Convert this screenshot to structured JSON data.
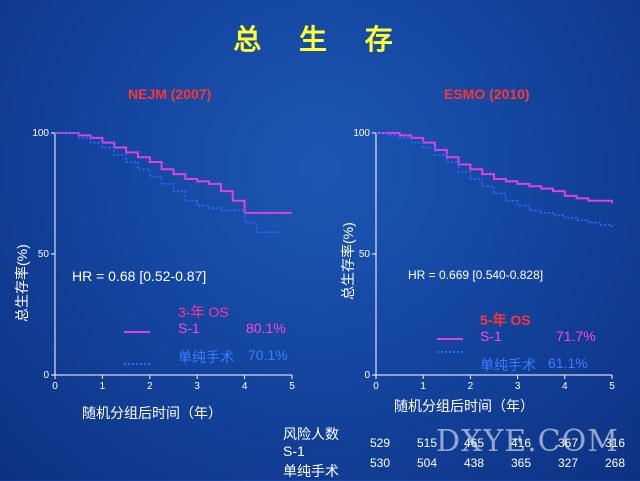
{
  "slide": {
    "title": "总 生 存",
    "watermark": "DXYE.COM",
    "risk_table": {
      "header": "风险人数",
      "rows": [
        {
          "label": "S-1",
          "counts": [
            "529",
            "515",
            "465",
            "416",
            "367",
            "316"
          ]
        },
        {
          "label": "单纯手术",
          "counts": [
            "530",
            "504",
            "438",
            "365",
            "327",
            "268"
          ]
        }
      ]
    }
  },
  "chart_data": [
    {
      "type": "line",
      "title": "NEJM (2007)",
      "xlabel": "随机分组后时间（年）",
      "ylabel": "总生存率(%)",
      "xlim": [
        0,
        5
      ],
      "ylim": [
        0,
        100
      ],
      "xticks": [
        "0",
        "1",
        "2",
        "3",
        "4",
        "5"
      ],
      "yticks": [
        "0",
        "50",
        "100"
      ],
      "annotation": "HR = 0.68 [0.52-0.87]",
      "legend_header": "3-年 OS",
      "series": [
        {
          "name": "S-1",
          "legend_value": "80.1%",
          "color": "#e040e0",
          "dash": "solid",
          "x": [
            0,
            0.25,
            0.5,
            0.75,
            1.0,
            1.25,
            1.5,
            1.75,
            2.0,
            2.25,
            2.5,
            2.75,
            3.0,
            3.25,
            3.5,
            3.75,
            4.0,
            4.25,
            4.5,
            4.75,
            5.0
          ],
          "y": [
            100,
            100,
            99,
            98,
            96,
            94,
            92,
            90,
            88,
            85,
            83,
            81,
            80,
            79,
            76,
            72,
            67,
            67,
            67,
            67,
            67
          ]
        },
        {
          "name": "单纯手术",
          "legend_value": "70.1%",
          "color": "#3366ff",
          "dash": "dotted",
          "x": [
            0,
            0.25,
            0.5,
            0.75,
            1.0,
            1.25,
            1.5,
            1.75,
            2.0,
            2.25,
            2.5,
            2.75,
            3.0,
            3.25,
            3.5,
            3.75,
            4.0,
            4.25,
            4.5,
            4.75
          ],
          "y": [
            100,
            100,
            98,
            96,
            94,
            91,
            88,
            85,
            82,
            79,
            76,
            72,
            70,
            69,
            68,
            68,
            63,
            59,
            59,
            59
          ]
        }
      ]
    },
    {
      "type": "line",
      "title": "ESMO (2010)",
      "xlabel": "随机分组后时间（年）",
      "ylabel": "总生存率(%)",
      "xlim": [
        0,
        5
      ],
      "ylim": [
        0,
        100
      ],
      "xticks": [
        "0",
        "1",
        "2",
        "3",
        "4",
        "5"
      ],
      "yticks": [
        "0",
        "50",
        "100"
      ],
      "annotation": "HR = 0.669   [0.540-0.828]",
      "legend_header": "5-年 OS",
      "series": [
        {
          "name": "S-1",
          "legend_value": "71.7%",
          "color": "#e040e0",
          "dash": "solid",
          "x": [
            0,
            0.25,
            0.5,
            0.75,
            1.0,
            1.25,
            1.5,
            1.75,
            2.0,
            2.25,
            2.5,
            2.75,
            3.0,
            3.25,
            3.5,
            3.75,
            4.0,
            4.25,
            4.5,
            4.75,
            5.0
          ],
          "y": [
            100,
            100,
            99,
            98,
            96,
            93,
            90,
            87,
            85,
            83,
            81,
            80,
            79,
            78,
            77,
            76,
            74,
            73,
            72,
            72,
            71
          ]
        },
        {
          "name": "单纯手术",
          "legend_value": "61.1%",
          "color": "#3366ff",
          "dash": "dotted",
          "x": [
            0,
            0.25,
            0.5,
            0.75,
            1.0,
            1.25,
            1.5,
            1.75,
            2.0,
            2.25,
            2.5,
            2.75,
            3.0,
            3.25,
            3.5,
            3.75,
            4.0,
            4.25,
            4.5,
            4.75,
            5.0
          ],
          "y": [
            100,
            99,
            98,
            96,
            94,
            91,
            88,
            84,
            81,
            78,
            75,
            72,
            70,
            68,
            67,
            66,
            65,
            64,
            63,
            62,
            61
          ]
        }
      ]
    }
  ]
}
